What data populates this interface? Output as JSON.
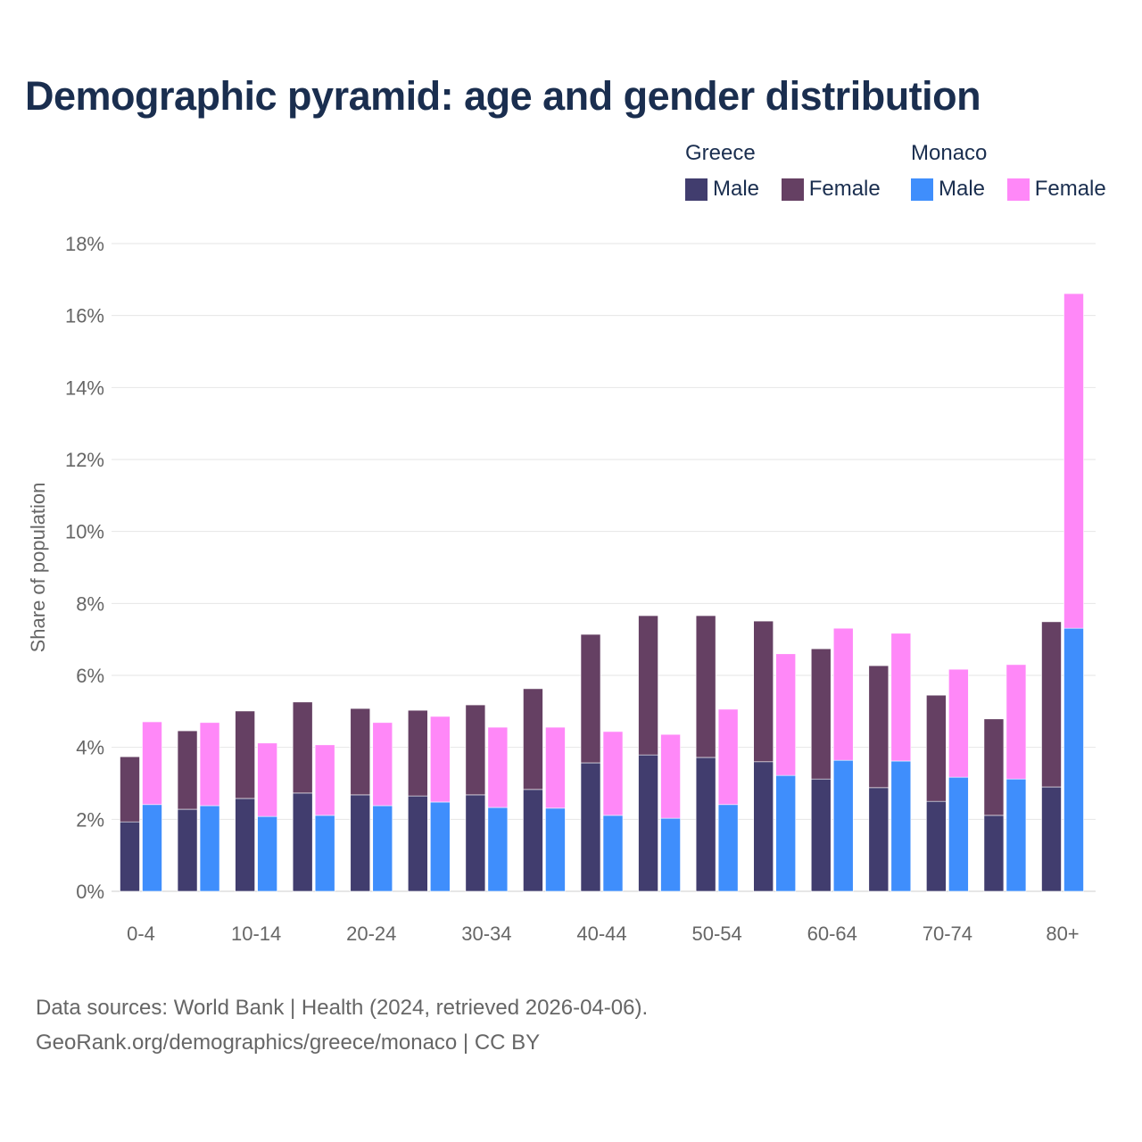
{
  "chart_data": {
    "type": "bar",
    "title": "Demographic pyramid: age and gender distribution",
    "ylabel": "Share of population",
    "xlabel": "",
    "ylim": [
      0,
      18
    ],
    "yticks": [
      0,
      2,
      4,
      6,
      8,
      10,
      12,
      14,
      16,
      18
    ],
    "ytick_labels": [
      "0%",
      "2%",
      "4%",
      "6%",
      "8%",
      "10%",
      "12%",
      "14%",
      "16%",
      "18%"
    ],
    "grid": true,
    "legend_position": "top-right",
    "categories": [
      "0-4",
      "5-9",
      "10-14",
      "15-19",
      "20-24",
      "25-29",
      "30-34",
      "35-39",
      "40-44",
      "45-49",
      "50-54",
      "55-59",
      "60-64",
      "65-69",
      "70-74",
      "75-79",
      "80+"
    ],
    "xtick_labels": [
      "0-4",
      "",
      "10-14",
      "",
      "20-24",
      "",
      "30-34",
      "",
      "40-44",
      "",
      "50-54",
      "",
      "60-64",
      "",
      "70-74",
      "",
      "80+"
    ],
    "groups": [
      {
        "name": "Greece",
        "series": [
          {
            "name": "Male",
            "color": "#413d6e",
            "values": [
              1.93,
              2.28,
              2.58,
              2.73,
              2.68,
              2.65,
              2.68,
              2.83,
              3.57,
              3.79,
              3.72,
              3.6,
              3.12,
              2.88,
              2.5,
              2.11,
              2.9
            ]
          },
          {
            "name": "Female",
            "color": "#654063",
            "values": [
              1.81,
              2.18,
              2.43,
              2.53,
              2.4,
              2.38,
              2.5,
              2.8,
              3.57,
              3.87,
              3.94,
              3.91,
              3.62,
              3.39,
              2.95,
              2.68,
              4.59
            ]
          }
        ]
      },
      {
        "name": "Monaco",
        "series": [
          {
            "name": "Male",
            "color": "#3f8efc",
            "values": [
              2.41,
              2.38,
              2.08,
              2.11,
              2.38,
              2.48,
              2.33,
              2.31,
              2.11,
              2.03,
              2.41,
              3.22,
              3.64,
              3.62,
              3.17,
              3.12,
              7.31
            ]
          },
          {
            "name": "Female",
            "color": "#ff88f8",
            "values": [
              2.3,
              2.31,
              2.04,
              1.96,
              2.31,
              2.38,
              2.23,
              2.25,
              2.33,
              2.33,
              2.65,
              3.38,
              3.67,
              3.55,
              3.0,
              3.18,
              9.3
            ]
          }
        ]
      }
    ]
  },
  "footer": {
    "source": "Data sources: World Bank | Health (2024, retrieved 2026-04-06).",
    "credit": "GeoRank.org/demographics/greece/monaco | CC BY"
  }
}
